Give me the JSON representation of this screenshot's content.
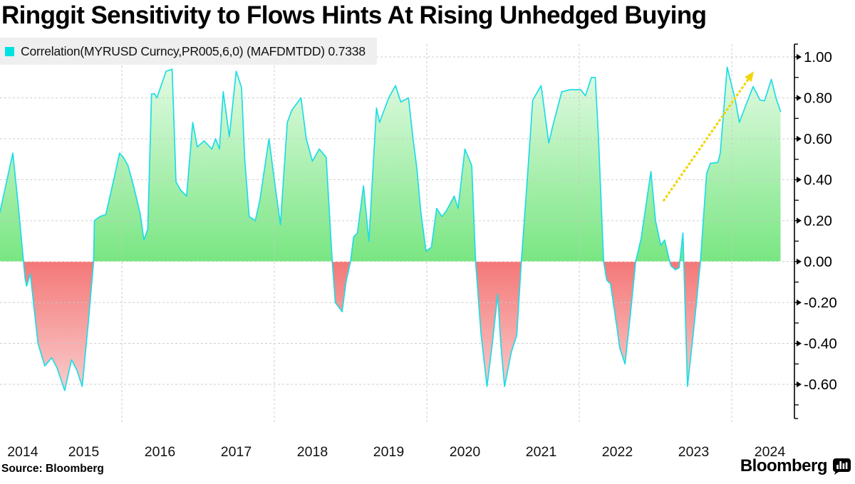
{
  "title": "Ringgit Sensitivity to Flows Hints At Rising Unhedged Buying",
  "legend": {
    "swatch_color": "#00e2e2",
    "label": "Correlation(MYRUSD Curncy,PR005,6,0) (MAFDMTDD) 0.7338"
  },
  "source": "Source: Bloomberg",
  "logo": {
    "wordmark": "Bloomberg"
  },
  "chart_data": {
    "type": "area",
    "title": "Ringgit Sensitivity to Flows Hints At Rising Unhedged Buying",
    "xlabel": "",
    "ylabel": "",
    "legend_position": "top-left",
    "grid": true,
    "xlim": [
      2014.4,
      2024.66
    ],
    "ylim": [
      -0.78,
      1.07
    ],
    "baseline": 0,
    "x_tick_labels": [
      {
        "label": "2014",
        "t": 2014.7
      },
      {
        "label": "2015",
        "t": 2015.5
      },
      {
        "label": "2016",
        "t": 2016.5
      },
      {
        "label": "2017",
        "t": 2017.5
      },
      {
        "label": "2018",
        "t": 2018.5
      },
      {
        "label": "2019",
        "t": 2019.5
      },
      {
        "label": "2020",
        "t": 2020.5
      },
      {
        "label": "2021",
        "t": 2021.5
      },
      {
        "label": "2022",
        "t": 2022.5
      },
      {
        "label": "2023",
        "t": 2023.5
      },
      {
        "label": "2024",
        "t": 2024.5
      }
    ],
    "x_gridline_years": [
      2016,
      2018,
      2020,
      2022,
      2024
    ],
    "y_ticks": [
      {
        "label": "1.00",
        "value": 1.0
      },
      {
        "label": "0.80",
        "value": 0.8
      },
      {
        "label": "0.60",
        "value": 0.6
      },
      {
        "label": "0.40",
        "value": 0.4
      },
      {
        "label": "0.20",
        "value": 0.2
      },
      {
        "label": "0.00",
        "value": 0.0
      },
      {
        "label": "-0.20",
        "value": -0.2
      },
      {
        "label": "-0.40",
        "value": -0.4
      },
      {
        "label": "-0.60",
        "value": -0.6
      }
    ],
    "y_minor_ticks": [
      0.9,
      0.7,
      0.5,
      0.3,
      0.1,
      -0.1,
      -0.3,
      -0.5,
      -0.7
    ],
    "series": [
      {
        "name": "Correlation(MYRUSD Curncy,PR005,6,0) (MAFDMTDD)",
        "last_value": 0.7338,
        "points": [
          [
            2014.4,
            0.24
          ],
          [
            2014.57,
            0.53
          ],
          [
            2014.64,
            0.28
          ],
          [
            2014.71,
            0.0
          ],
          [
            2014.73,
            -0.08
          ],
          [
            2014.75,
            -0.12
          ],
          [
            2014.8,
            -0.06
          ],
          [
            2014.9,
            -0.4
          ],
          [
            2014.99,
            -0.51
          ],
          [
            2015.08,
            -0.47
          ],
          [
            2015.15,
            -0.52
          ],
          [
            2015.25,
            -0.63
          ],
          [
            2015.34,
            -0.48
          ],
          [
            2015.41,
            -0.53
          ],
          [
            2015.48,
            -0.61
          ],
          [
            2015.56,
            -0.3
          ],
          [
            2015.63,
            0.0
          ],
          [
            2015.64,
            0.2
          ],
          [
            2015.71,
            0.22
          ],
          [
            2015.79,
            0.23
          ],
          [
            2015.9,
            0.41
          ],
          [
            2015.97,
            0.53
          ],
          [
            2016.02,
            0.51
          ],
          [
            2016.08,
            0.47
          ],
          [
            2016.16,
            0.36
          ],
          [
            2016.24,
            0.235
          ],
          [
            2016.29,
            0.105
          ],
          [
            2016.34,
            0.16
          ],
          [
            2016.39,
            0.82
          ],
          [
            2016.43,
            0.82
          ],
          [
            2016.46,
            0.8
          ],
          [
            2016.58,
            0.93
          ],
          [
            2016.66,
            0.94
          ],
          [
            2016.71,
            0.39
          ],
          [
            2016.77,
            0.35
          ],
          [
            2016.85,
            0.32
          ],
          [
            2016.93,
            0.68
          ],
          [
            2016.99,
            0.56
          ],
          [
            2017.08,
            0.59
          ],
          [
            2017.18,
            0.55
          ],
          [
            2017.23,
            0.6
          ],
          [
            2017.28,
            0.55
          ],
          [
            2017.33,
            0.83
          ],
          [
            2017.41,
            0.61
          ],
          [
            2017.5,
            0.93
          ],
          [
            2017.57,
            0.85
          ],
          [
            2017.61,
            0.51
          ],
          [
            2017.67,
            0.22
          ],
          [
            2017.75,
            0.2
          ],
          [
            2017.81,
            0.3
          ],
          [
            2017.93,
            0.6
          ],
          [
            2018.0,
            0.4
          ],
          [
            2018.08,
            0.18
          ],
          [
            2018.17,
            0.68
          ],
          [
            2018.23,
            0.74
          ],
          [
            2018.35,
            0.8
          ],
          [
            2018.42,
            0.6
          ],
          [
            2018.5,
            0.49
          ],
          [
            2018.59,
            0.55
          ],
          [
            2018.68,
            0.51
          ],
          [
            2018.76,
            0.0
          ],
          [
            2018.8,
            -0.2
          ],
          [
            2018.89,
            -0.245
          ],
          [
            2018.94,
            -0.1
          ],
          [
            2019.0,
            0.0
          ],
          [
            2019.04,
            0.12
          ],
          [
            2019.09,
            0.14
          ],
          [
            2019.17,
            0.37
          ],
          [
            2019.24,
            0.1
          ],
          [
            2019.34,
            0.75
          ],
          [
            2019.38,
            0.68
          ],
          [
            2019.5,
            0.8
          ],
          [
            2019.59,
            0.86
          ],
          [
            2019.66,
            0.78
          ],
          [
            2019.76,
            0.8
          ],
          [
            2019.82,
            0.6
          ],
          [
            2019.87,
            0.455
          ],
          [
            2019.92,
            0.25
          ],
          [
            2019.99,
            0.05
          ],
          [
            2020.06,
            0.07
          ],
          [
            2020.13,
            0.26
          ],
          [
            2020.2,
            0.22
          ],
          [
            2020.26,
            0.25
          ],
          [
            2020.36,
            0.32
          ],
          [
            2020.41,
            0.26
          ],
          [
            2020.5,
            0.55
          ],
          [
            2020.59,
            0.47
          ],
          [
            2020.64,
            0.0
          ],
          [
            2020.71,
            -0.35
          ],
          [
            2020.79,
            -0.61
          ],
          [
            2020.86,
            -0.4
          ],
          [
            2020.93,
            -0.16
          ],
          [
            2020.97,
            -0.4
          ],
          [
            2021.02,
            -0.61
          ],
          [
            2021.11,
            -0.44
          ],
          [
            2021.18,
            -0.36
          ],
          [
            2021.24,
            0.0
          ],
          [
            2021.32,
            0.41
          ],
          [
            2021.39,
            0.79
          ],
          [
            2021.5,
            0.86
          ],
          [
            2021.6,
            0.58
          ],
          [
            2021.65,
            0.66
          ],
          [
            2021.77,
            0.83
          ],
          [
            2021.88,
            0.84
          ],
          [
            2022.02,
            0.84
          ],
          [
            2022.08,
            0.81
          ],
          [
            2022.16,
            0.9
          ],
          [
            2022.21,
            0.9
          ],
          [
            2022.25,
            0.62
          ],
          [
            2022.32,
            0.0
          ],
          [
            2022.36,
            -0.09
          ],
          [
            2022.41,
            -0.11
          ],
          [
            2022.49,
            -0.31
          ],
          [
            2022.53,
            -0.42
          ],
          [
            2022.6,
            -0.5
          ],
          [
            2022.67,
            -0.26
          ],
          [
            2022.74,
            0.0
          ],
          [
            2022.81,
            0.11
          ],
          [
            2022.94,
            0.44
          ],
          [
            2023.0,
            0.2
          ],
          [
            2023.07,
            0.08
          ],
          [
            2023.12,
            0.105
          ],
          [
            2023.2,
            -0.02
          ],
          [
            2023.26,
            -0.04
          ],
          [
            2023.31,
            -0.03
          ],
          [
            2023.36,
            0.14
          ],
          [
            2023.42,
            -0.61
          ],
          [
            2023.51,
            -0.3
          ],
          [
            2023.59,
            0.0
          ],
          [
            2023.67,
            0.43
          ],
          [
            2023.72,
            0.48
          ],
          [
            2023.82,
            0.485
          ],
          [
            2023.85,
            0.53
          ],
          [
            2023.94,
            0.95
          ],
          [
            2024.05,
            0.785
          ],
          [
            2024.1,
            0.68
          ],
          [
            2024.18,
            0.76
          ],
          [
            2024.28,
            0.855
          ],
          [
            2024.33,
            0.82
          ],
          [
            2024.37,
            0.79
          ],
          [
            2024.43,
            0.785
          ],
          [
            2024.52,
            0.89
          ],
          [
            2024.58,
            0.8
          ],
          [
            2024.64,
            0.734
          ]
        ]
      }
    ],
    "annotation": {
      "type": "trend-arrow",
      "style": "dotted",
      "from_t": 2023.11,
      "from_v": 0.3,
      "to_t": 2024.29,
      "to_v": 0.93
    },
    "colors": {
      "line": "#1edce6",
      "positive_fill_top": "#f0fdf0",
      "positive_fill_zero": "#79e682",
      "negative_fill_zero": "#f47878",
      "negative_fill_bottom": "#fce4e4",
      "gridline": "#c9c9c9",
      "arrow": "#f2d60c",
      "axis": "#000000"
    }
  }
}
